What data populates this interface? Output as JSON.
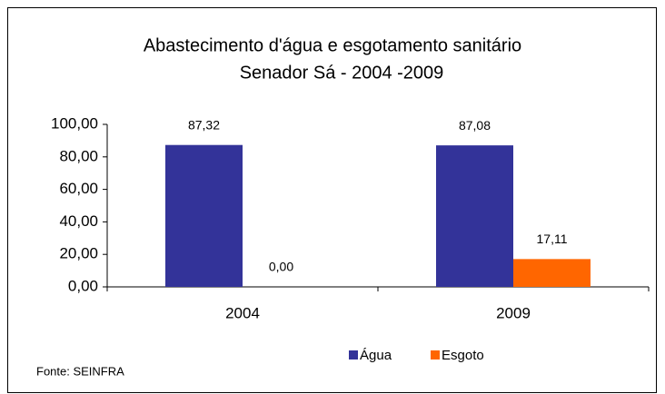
{
  "chart_data": {
    "type": "bar",
    "title": "Abastecimento d'água e esgotamento sanitário",
    "subtitle": "Senador Sá  - 2004 -2009",
    "categories": [
      "2004",
      "2009"
    ],
    "series": [
      {
        "name": "Água",
        "color": "#333399",
        "values": [
          87.32,
          87.08
        ],
        "value_labels": [
          "87,32",
          "87,08"
        ]
      },
      {
        "name": "Esgoto",
        "color": "#ff6600",
        "values": [
          0,
          17.11
        ],
        "value_labels": [
          "0,00",
          "17,11"
        ]
      }
    ],
    "ylim": [
      0,
      100
    ],
    "yticks": [
      {
        "value": 0,
        "label": "0,00"
      },
      {
        "value": 20,
        "label": "20,00"
      },
      {
        "value": 40,
        "label": "40,00"
      },
      {
        "value": 60,
        "label": "60,00"
      },
      {
        "value": 80,
        "label": "80,00"
      },
      {
        "value": 100,
        "label": "100,00"
      }
    ],
    "legend": "bottom",
    "source": "Fonte: SEINFRA"
  }
}
